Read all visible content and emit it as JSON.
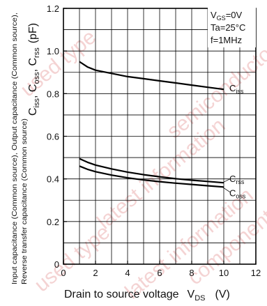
{
  "chart_data": {
    "type": "line",
    "xlabel": "Drain to source voltage",
    "xlabel_sym": "V",
    "xlabel_sub": "DS",
    "xlabel_unit": "(V)",
    "ylabel_lines": [
      "Input capacitance (Common source), Output capacitance (Common source),",
      "Reverse transfer capacitance (Common source)"
    ],
    "ylabel_symbols": "C",
    "ylabel_unit": "(pF)",
    "xlim": [
      0,
      12
    ],
    "ylim": [
      0,
      1.2
    ],
    "x_ticks": [
      "0",
      "2",
      "4",
      "6",
      "8",
      "10",
      "12"
    ],
    "y_ticks": [
      "0",
      "0.2",
      "0.4",
      "0.6",
      "0.8",
      "1.0",
      "1.2"
    ],
    "grid": true,
    "conditions": [
      "V",
      "GS",
      "=0V",
      "Ta=25°C",
      "f=1MHz"
    ],
    "series": [
      {
        "name": "C",
        "sub": "iss",
        "x": [
          1.0,
          1.5,
          2.0,
          3.0,
          4.0,
          5.0,
          6.0,
          7.0,
          8.0,
          9.0,
          10.0
        ],
        "y": [
          0.95,
          0.925,
          0.91,
          0.895,
          0.88,
          0.87,
          0.86,
          0.85,
          0.84,
          0.83,
          0.82
        ]
      },
      {
        "name": "C",
        "sub": "rss",
        "x": [
          1.0,
          1.5,
          2.0,
          3.0,
          4.0,
          5.0,
          6.0,
          7.0,
          8.0,
          9.0,
          10.0
        ],
        "y": [
          0.495,
          0.478,
          0.465,
          0.447,
          0.432,
          0.42,
          0.41,
          0.401,
          0.394,
          0.388,
          0.382
        ]
      },
      {
        "name": "C",
        "sub": "oss",
        "x": [
          1.0,
          1.5,
          2.0,
          3.0,
          4.0,
          5.0,
          6.0,
          7.0,
          8.0,
          9.0,
          10.0
        ],
        "y": [
          0.46,
          0.445,
          0.434,
          0.418,
          0.405,
          0.395,
          0.387,
          0.38,
          0.374,
          0.368,
          0.362
        ]
      }
    ],
    "watermark": [
      "used type",
      "latest information",
      "semiconductor",
      "used type",
      "latest information",
      "component"
    ]
  }
}
